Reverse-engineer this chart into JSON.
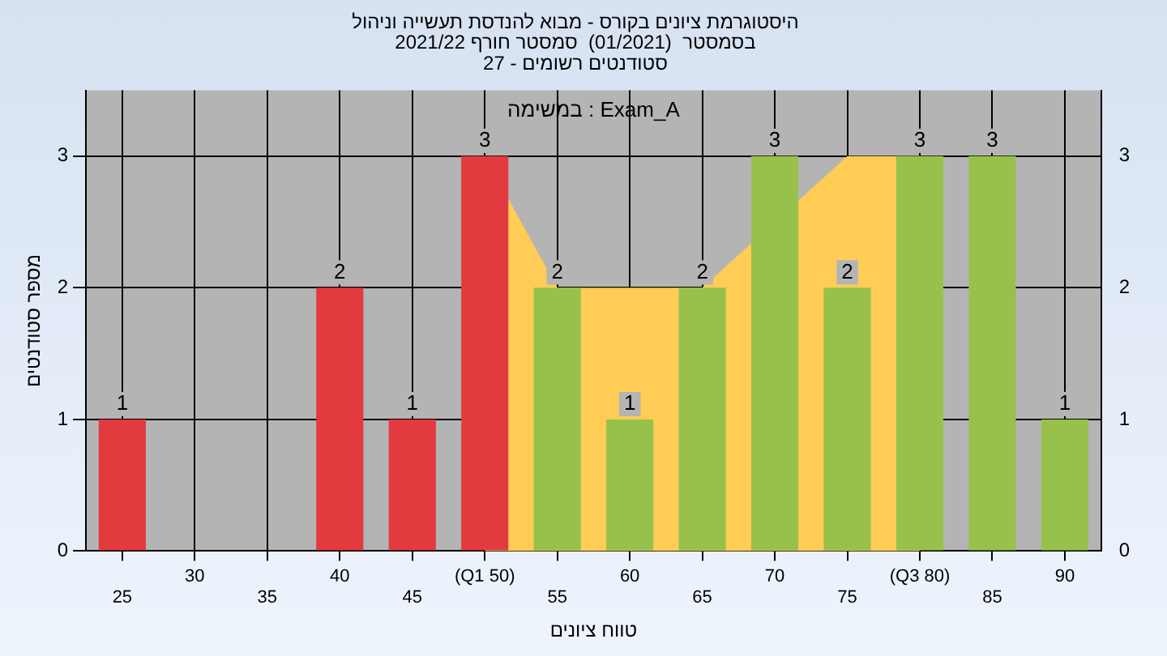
{
  "chart_data": {
    "type": "bar",
    "title": [
      "היסטוגרמת ציונים בקורס - מבוא להנדסת תעשייה וניהול",
      "בסמסטר  (01/2021)  סמסטר חורף 2021/22",
      "סטודנטים רשומים - 27"
    ],
    "xlabel": "טווח ציונים",
    "ylabel": "מספר סטודנטים",
    "annotations": [
      "במשימה : Exam_A"
    ],
    "categories": [
      "25",
      "30",
      "35",
      "40",
      "45",
      "(Q1 50)",
      "55",
      "60",
      "65",
      "70",
      "75",
      "(Q3 80)",
      "85",
      "90"
    ],
    "series": [
      {
        "colors": [
          "#e23a3f",
          "#e23a3f",
          "#e23a3f",
          "#e23a3f",
          "#e23a3f",
          "#e23a3f",
          "#98c14c",
          "#98c14c",
          "#98c14c",
          "#98c14c",
          "#98c14c",
          "#98c14c",
          "#98c14c",
          "#98c14c"
        ],
        "values": [
          1,
          0,
          0,
          2,
          1,
          3,
          2,
          1,
          2,
          3,
          2,
          3,
          3,
          1
        ],
        "value_labels": [
          "1",
          null,
          null,
          "2",
          "1",
          "3",
          "2",
          "1",
          "2",
          "3",
          "2",
          "3",
          "3",
          "1"
        ]
      },
      {
        "type": "area",
        "color": "#ffcc55",
        "values": [
          null,
          null,
          null,
          null,
          null,
          3,
          2,
          2,
          2,
          null,
          3,
          3,
          null,
          null
        ]
      }
    ],
    "ylim": [
      0,
      3.5
    ],
    "yticks": [
      0,
      1,
      2,
      3
    ],
    "y2lim": [
      0,
      3.5
    ],
    "y2ticks": [
      0,
      1,
      2,
      3
    ],
    "grid": true,
    "legend": false
  }
}
